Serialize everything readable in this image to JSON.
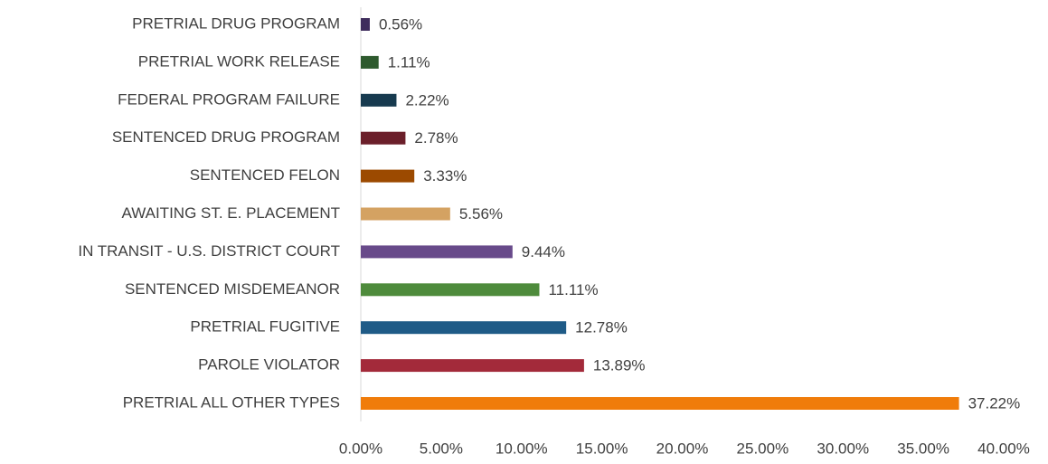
{
  "chart_data": {
    "type": "barh",
    "categories": [
      "PRETRIAL DRUG PROGRAM",
      "PRETRIAL WORK RELEASE",
      "FEDERAL PROGRAM FAILURE",
      "SENTENCED DRUG PROGRAM",
      "SENTENCED FELON",
      "AWAITING ST. E. PLACEMENT",
      "IN TRANSIT - U.S. DISTRICT COURT",
      "SENTENCED MISDEMEANOR",
      "PRETRIAL FUGITIVE",
      "PAROLE VIOLATOR",
      "PRETRIAL ALL OTHER TYPES"
    ],
    "values": [
      0.56,
      1.11,
      2.22,
      2.78,
      3.33,
      5.56,
      9.44,
      11.11,
      12.78,
      13.89,
      37.22
    ],
    "value_labels": [
      "0.56%",
      "1.11%",
      "2.22%",
      "2.78%",
      "3.33%",
      "5.56%",
      "9.44%",
      "11.11%",
      "12.78%",
      "13.89%",
      "37.22%"
    ],
    "colors": [
      "#3f2d5c",
      "#2e5a2e",
      "#173a4f",
      "#6b1f2a",
      "#9c4a00",
      "#d4a262",
      "#684a8a",
      "#4e8b3c",
      "#1f5b87",
      "#a32a3a",
      "#f07c0a"
    ],
    "xlim": [
      0,
      40
    ],
    "xticks": [
      {
        "value": 0,
        "label": "0.00%"
      },
      {
        "value": 5,
        "label": "5.00%"
      },
      {
        "value": 10,
        "label": "10.00%"
      },
      {
        "value": 15,
        "label": "15.00%"
      },
      {
        "value": 20,
        "label": "20.00%"
      },
      {
        "value": 25,
        "label": "25.00%"
      },
      {
        "value": 30,
        "label": "30.00%"
      },
      {
        "value": 35,
        "label": "35.00%"
      },
      {
        "value": 40,
        "label": "40.00%"
      }
    ]
  }
}
